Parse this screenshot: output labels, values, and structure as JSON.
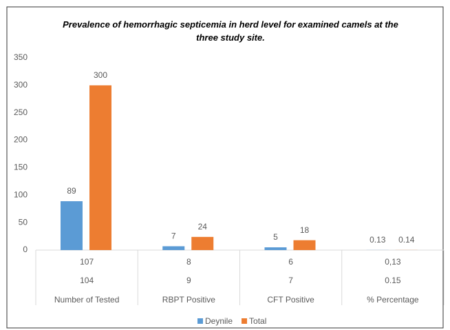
{
  "chart_data": {
    "type": "bar",
    "title": "Prevalence of hemorrhagic septicemia in herd level for examined camels at the three study site.",
    "categories": [
      "Number of Tested",
      "RBPT Positive",
      "CFT Positive",
      "% Percentage"
    ],
    "series": [
      {
        "name": "Deynile",
        "color": "#5b9bd5",
        "values": [
          89,
          7,
          5,
          0.13
        ]
      },
      {
        "name": "Total",
        "color": "#ed7d31",
        "values": [
          300,
          24,
          18,
          0.14
        ]
      }
    ],
    "table_rows": [
      [
        "107",
        "8",
        "6",
        "0,13"
      ],
      [
        "104",
        "9",
        "7",
        "0.15"
      ]
    ],
    "ylim": [
      0,
      350
    ],
    "yticks": [
      0,
      50,
      100,
      150,
      200,
      250,
      300,
      350
    ],
    "legend": "bottom"
  }
}
